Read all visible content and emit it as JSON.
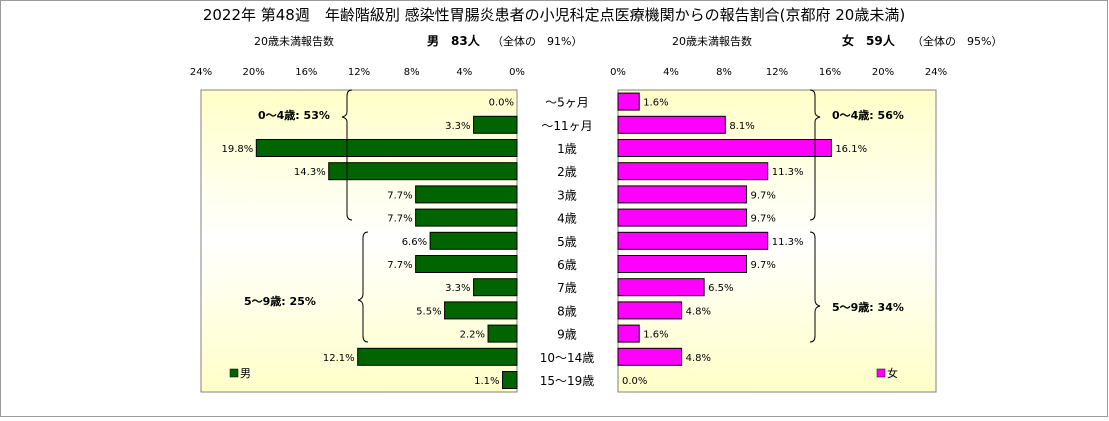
{
  "title": "2022年 第48週　年齢階級別 感染性胃腸炎患者の小児科定点医療機関からの報告割合(京都府 20歳未満)",
  "male_header": {
    "count_label": "20歳未満報告数",
    "sex_count": "男　83人",
    "share": "（全体の　91%）"
  },
  "female_header": {
    "count_label": "20歳未満報告数",
    "sex_count": "女　59人",
    "share": "（全体の　95%）"
  },
  "annotations": {
    "male_0_4": "0～4歳: 53%",
    "male_5_9": "5～9歳: 25%",
    "female_0_4": "0～4歳: 56%",
    "female_5_9": "5～9歳: 34%"
  },
  "legend": {
    "male": "男",
    "female": "女"
  },
  "colors": {
    "male": "#006400",
    "female": "#ff00ff",
    "plot_gradient_edge": "#ffffc8",
    "plot_gradient_center": "#ffffff"
  },
  "chart_data": {
    "type": "bar",
    "orientation": "horizontal-butterfly",
    "title": "2022年 第48週　年齢階級別 感染性胃腸炎患者の小児科定点医療機関からの報告割合(京都府 20歳未満)",
    "categories": [
      "～5ヶ月",
      "～11ヶ月",
      "1歳",
      "2歳",
      "3歳",
      "4歳",
      "5歳",
      "6歳",
      "7歳",
      "8歳",
      "9歳",
      "10～14歳",
      "15～19歳"
    ],
    "series": [
      {
        "name": "男",
        "values": [
          0.0,
          3.3,
          19.8,
          14.3,
          7.7,
          7.7,
          6.6,
          7.7,
          3.3,
          5.5,
          2.2,
          12.1,
          1.1
        ]
      },
      {
        "name": "女",
        "values": [
          1.6,
          8.1,
          16.1,
          11.3,
          9.7,
          9.7,
          11.3,
          9.7,
          6.5,
          4.8,
          1.6,
          4.8,
          0.0
        ]
      }
    ],
    "value_labels": {
      "男": [
        "0.0%",
        "3.3%",
        "19.8%",
        "14.3%",
        "7.7%",
        "7.7%",
        "6.6%",
        "7.7%",
        "3.3%",
        "5.5%",
        "2.2%",
        "12.1%",
        "1.1%"
      ],
      "女": [
        "1.6%",
        "8.1%",
        "16.1%",
        "11.3%",
        "9.7%",
        "9.7%",
        "11.3%",
        "9.7%",
        "6.5%",
        "4.8%",
        "1.6%",
        "4.8%",
        "0.0%"
      ]
    },
    "male_ticks": [
      "24%",
      "20%",
      "16%",
      "12%",
      "8%",
      "4%",
      "0%"
    ],
    "female_ticks": [
      "0%",
      "4%",
      "8%",
      "12%",
      "16%",
      "20%",
      "24%"
    ],
    "xlim": [
      0,
      24
    ],
    "grid": false,
    "legend_position": "bottom-corners"
  }
}
